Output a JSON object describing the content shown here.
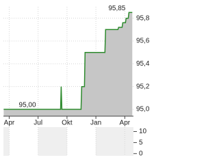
{
  "chart_data": [
    {
      "type": "line",
      "x": [
        -0.57,
        5.33,
        5.4,
        5.47,
        7.46,
        7.53,
        7.81,
        7.88,
        9.94,
        10.01,
        11.29,
        11.36,
        11.72,
        11.79,
        12.07,
        12.14,
        12.36,
        12.43,
        12.78
      ],
      "series": [
        {
          "color": "#2e8b2e",
          "values": [
            95.0,
            95.0,
            95.2,
            95.0,
            95.0,
            95.2,
            95.2,
            95.5,
            95.5,
            95.7,
            95.7,
            95.72,
            95.72,
            95.76,
            95.76,
            95.8,
            95.8,
            95.85,
            95.85
          ]
        }
      ],
      "area_color": "#c6c6c6",
      "xlim": [
        -0.6,
        12.9
      ],
      "xticks": [
        {
          "value": 0,
          "label": "Apr"
        },
        {
          "value": 3,
          "label": "Jul"
        },
        {
          "value": 6,
          "label": "Okt"
        },
        {
          "value": 9,
          "label": "Jan"
        },
        {
          "value": 12,
          "label": "Apr"
        }
      ],
      "ylim": [
        94.94,
        95.9
      ],
      "yticks": [
        {
          "value": 95.0,
          "label": "95,0"
        },
        {
          "value": 95.2,
          "label": "95,2"
        },
        {
          "value": 95.4,
          "label": "95,4"
        },
        {
          "value": 95.6,
          "label": "95,6"
        },
        {
          "value": 95.8,
          "label": "95,8"
        }
      ],
      "annotations": [
        {
          "text": "95,85",
          "x": 12.43,
          "y": 95.85
        },
        {
          "text": "95,00",
          "x": 1.0,
          "y": 95.0
        }
      ],
      "grid": true
    },
    {
      "type": "volume",
      "xlim": [
        -0.6,
        12.9
      ],
      "xticks": [
        0,
        3,
        6,
        9,
        12
      ],
      "ylim": [
        -1,
        12
      ],
      "yticks": [
        0,
        5,
        10
      ]
    }
  ]
}
